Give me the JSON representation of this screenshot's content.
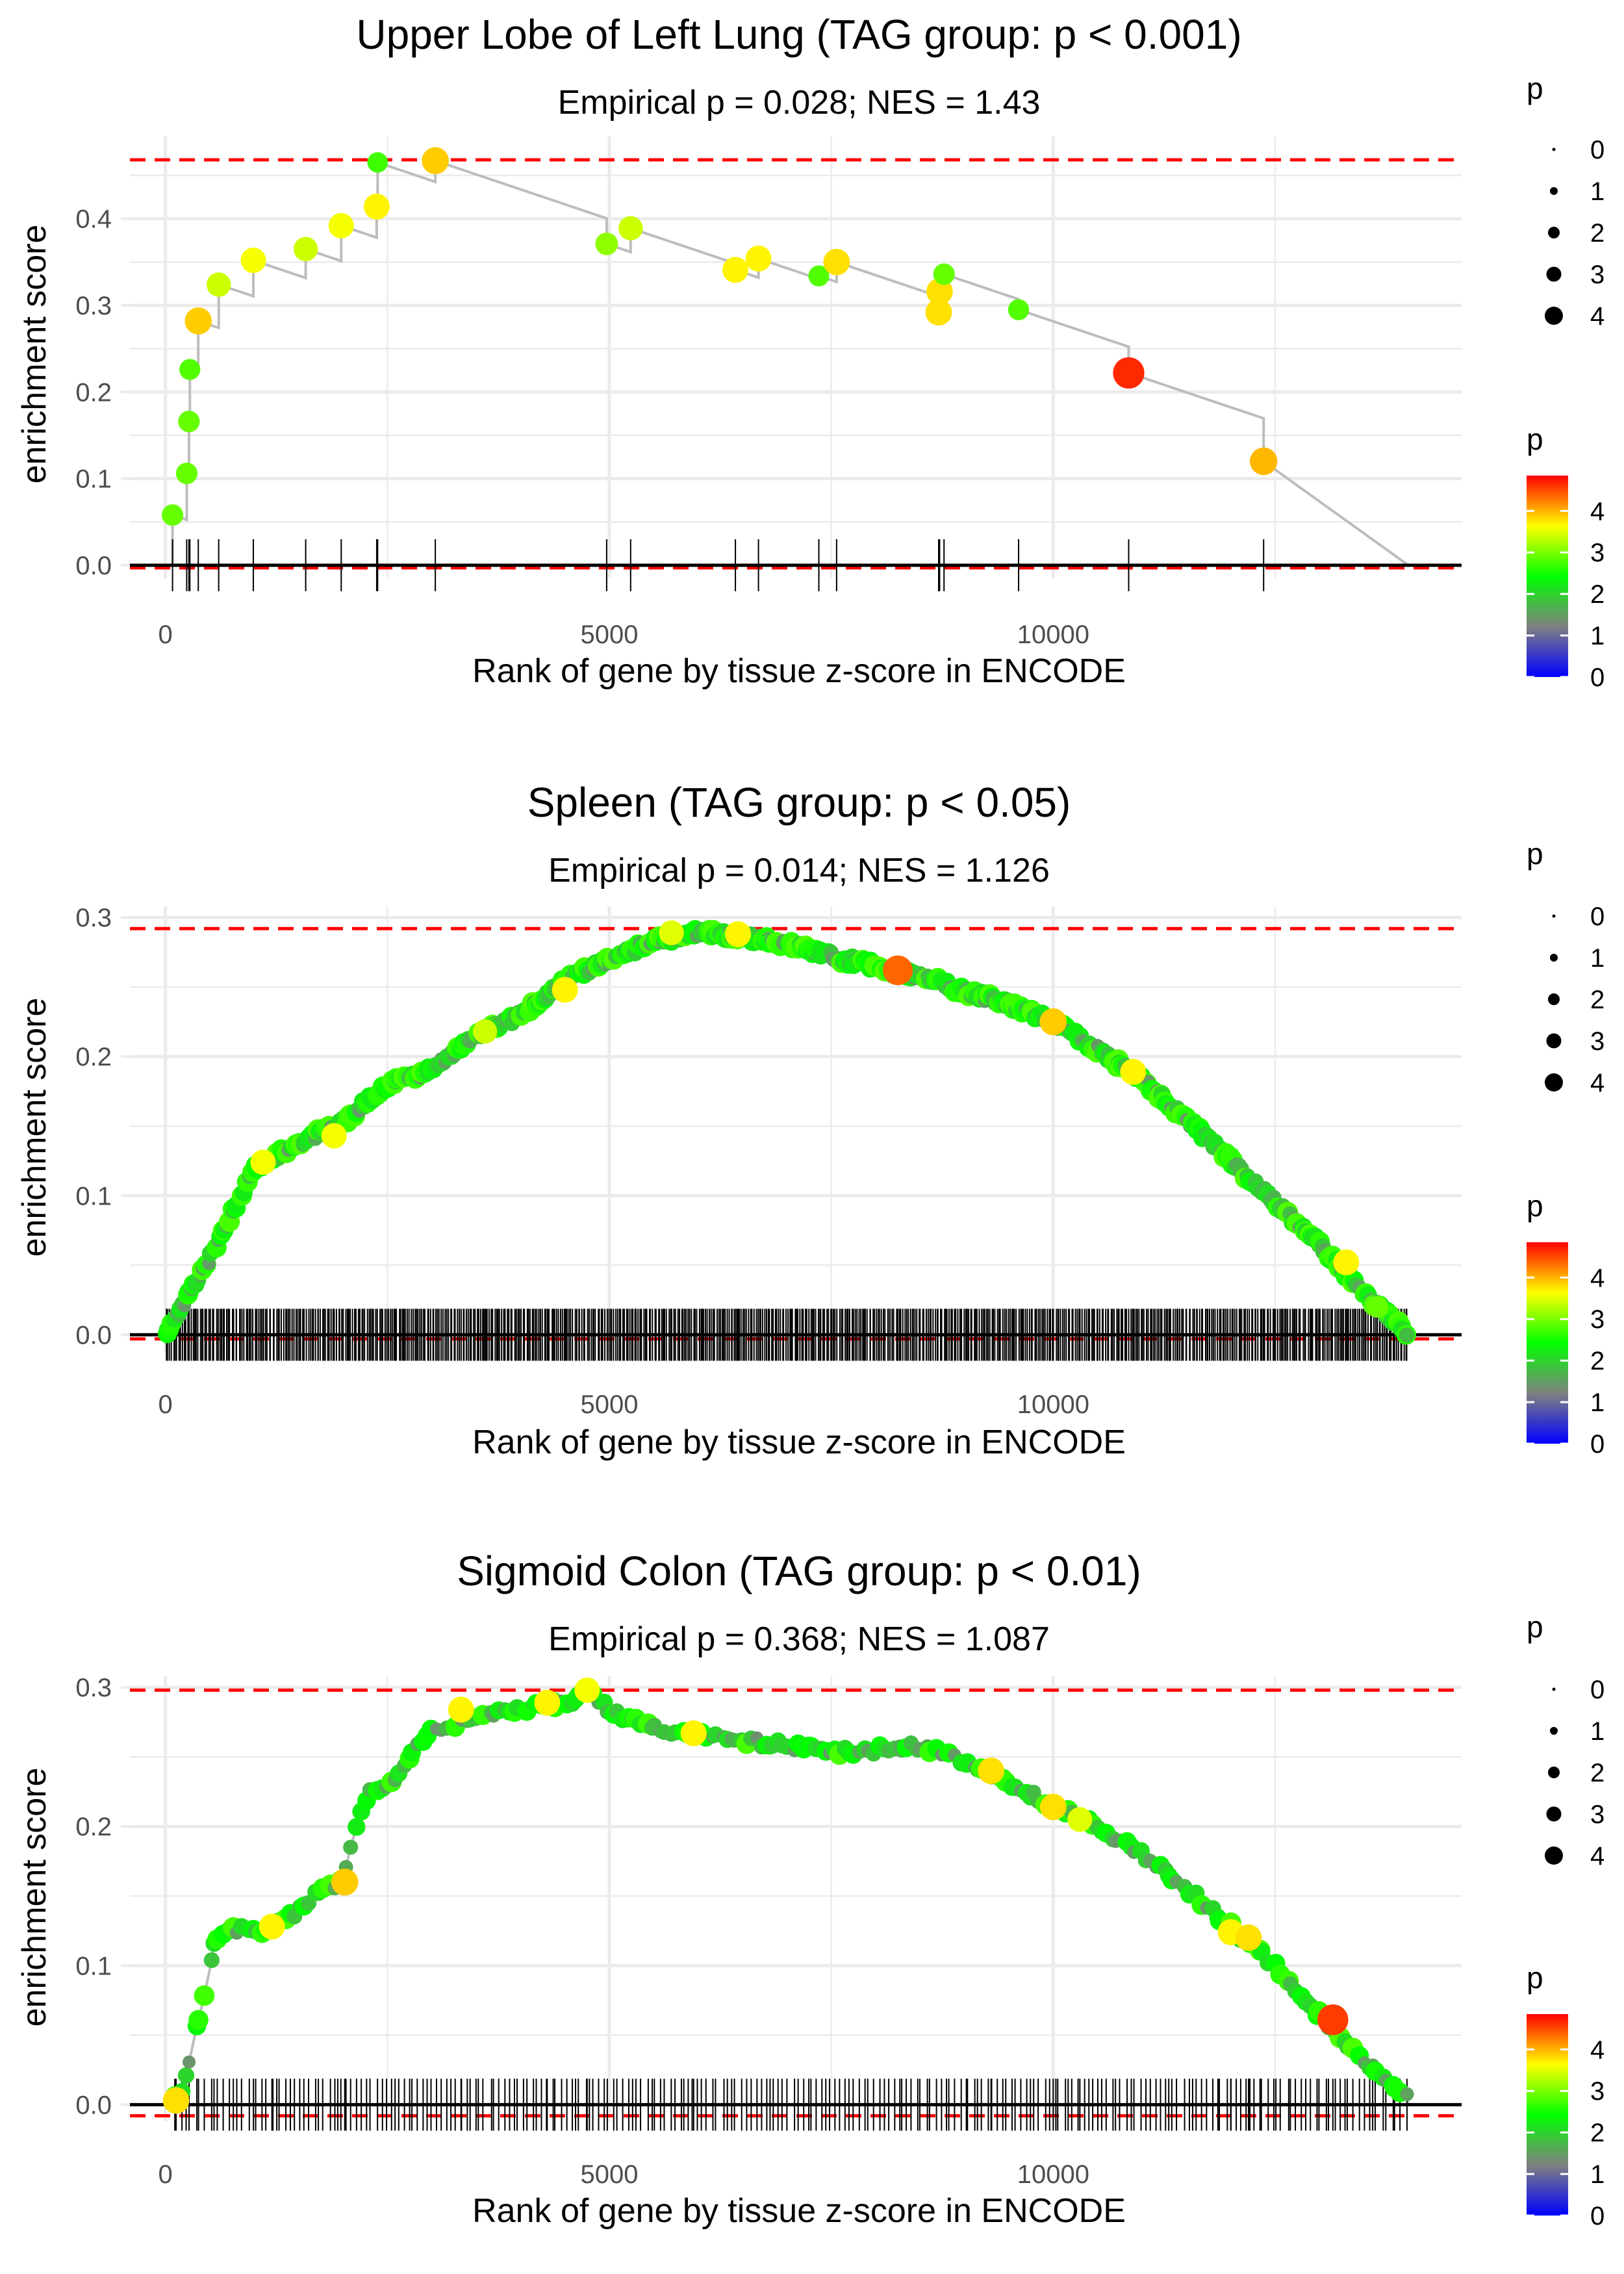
{
  "legend_labels": {
    "size_title": "p",
    "color_title": "p",
    "size_values": [
      "0",
      "1",
      "2",
      "3",
      "4"
    ],
    "color_values": [
      "4",
      "3",
      "2",
      "1",
      "0"
    ]
  },
  "colors": {
    "gradient": [
      "#0000ff",
      "#808080",
      "#00ff00",
      "#ffff00",
      "#ff0000"
    ],
    "running_line": "#bdbdbd",
    "reference_dash": "#ff0000",
    "grid": "#ebebeb",
    "text": "#000000",
    "tick_label": "#4d4d4d"
  },
  "chart_data": [
    {
      "type": "line",
      "title": "Upper Lobe of Left Lung (TAG group: p < 0.001)",
      "subtitle": "Empirical p = 0.028; NES = 1.43",
      "xlabel": "Rank of gene by tissue z-score in ENCODE",
      "ylabel": "enrichment score",
      "xlim": [
        -400,
        14600
      ],
      "ylim": [
        -0.015,
        0.495
      ],
      "xticks": [
        0,
        5000,
        10000
      ],
      "xtick_labels": [
        "0",
        "5000",
        "10000"
      ],
      "yticks": [
        0,
        0.1,
        0.2,
        0.3,
        0.4
      ],
      "ytick_labels": [
        "0.0",
        "0.1",
        "0.2",
        "0.3",
        "0.4"
      ],
      "max_es": 0.468,
      "min_es": -0.003,
      "end_rank": 14000,
      "dense": false,
      "hits": [
        {
          "x": 80,
          "y": 0.058,
          "p": 3.0
        },
        {
          "x": 240,
          "y": 0.106,
          "p": 3.0
        },
        {
          "x": 265,
          "y": 0.166,
          "p": 3.0
        },
        {
          "x": 275,
          "y": 0.226,
          "p": 2.9
        },
        {
          "x": 370,
          "y": 0.282,
          "p": 4.0
        },
        {
          "x": 600,
          "y": 0.324,
          "p": 3.5
        },
        {
          "x": 990,
          "y": 0.352,
          "p": 3.7
        },
        {
          "x": 1580,
          "y": 0.365,
          "p": 3.5
        },
        {
          "x": 1980,
          "y": 0.392,
          "p": 3.7
        },
        {
          "x": 2380,
          "y": 0.414,
          "p": 3.8
        },
        {
          "x": 2390,
          "y": 0.465,
          "p": 2.8
        },
        {
          "x": 3040,
          "y": 0.467,
          "p": 4.0
        },
        {
          "x": 4970,
          "y": 0.371,
          "p": 3.2
        },
        {
          "x": 5240,
          "y": 0.389,
          "p": 3.5
        },
        {
          "x": 6420,
          "y": 0.341,
          "p": 3.8
        },
        {
          "x": 6680,
          "y": 0.354,
          "p": 3.8
        },
        {
          "x": 7360,
          "y": 0.334,
          "p": 2.9
        },
        {
          "x": 7560,
          "y": 0.35,
          "p": 3.9
        },
        {
          "x": 8710,
          "y": 0.292,
          "p": 3.9
        },
        {
          "x": 8720,
          "y": 0.316,
          "p": 3.9
        },
        {
          "x": 8770,
          "y": 0.336,
          "p": 3.0
        },
        {
          "x": 9610,
          "y": 0.295,
          "p": 2.9
        },
        {
          "x": 10850,
          "y": 0.222,
          "p": 4.8
        },
        {
          "x": 12370,
          "y": 0.12,
          "p": 4.1
        }
      ]
    },
    {
      "type": "line",
      "title": "Spleen (TAG group: p < 0.05)",
      "subtitle": "Empirical p = 0.014; NES = 1.126",
      "xlabel": "Rank of gene by tissue z-score in ENCODE",
      "ylabel": "enrichment score",
      "xlim": [
        -400,
        14600
      ],
      "ylim": [
        -0.012,
        0.308
      ],
      "xticks": [
        0,
        5000,
        10000
      ],
      "xtick_labels": [
        "0",
        "5000",
        "10000"
      ],
      "yticks": [
        0,
        0.1,
        0.2,
        0.3
      ],
      "ytick_labels": [
        "0.0",
        "0.1",
        "0.2",
        "0.3"
      ],
      "max_es": 0.292,
      "min_es": -0.003,
      "end_rank": 14000,
      "dense": true,
      "hit_count": 700,
      "seed": 11,
      "curve": [
        [
          0,
          0
        ],
        [
          500,
          0.055
        ],
        [
          1000,
          0.12
        ],
        [
          1500,
          0.138
        ],
        [
          2000,
          0.153
        ],
        [
          2500,
          0.18
        ],
        [
          3000,
          0.19
        ],
        [
          3500,
          0.215
        ],
        [
          4000,
          0.23
        ],
        [
          4500,
          0.255
        ],
        [
          5000,
          0.27
        ],
        [
          5500,
          0.283
        ],
        [
          6000,
          0.289
        ],
        [
          6500,
          0.286
        ],
        [
          7000,
          0.281
        ],
        [
          7500,
          0.272
        ],
        [
          8000,
          0.265
        ],
        [
          8500,
          0.258
        ],
        [
          9000,
          0.247
        ],
        [
          9500,
          0.238
        ],
        [
          10000,
          0.225
        ],
        [
          10500,
          0.205
        ],
        [
          11000,
          0.183
        ],
        [
          11500,
          0.155
        ],
        [
          12000,
          0.125
        ],
        [
          12500,
          0.095
        ],
        [
          13000,
          0.065
        ],
        [
          13500,
          0.03
        ],
        [
          14000,
          0
        ]
      ],
      "highlights": [
        {
          "x": 1100,
          "y": 0.124,
          "p": 3.7
        },
        {
          "x": 1900,
          "y": 0.143,
          "p": 3.7
        },
        {
          "x": 3600,
          "y": 0.218,
          "p": 3.5
        },
        {
          "x": 4500,
          "y": 0.248,
          "p": 3.8
        },
        {
          "x": 5700,
          "y": 0.289,
          "p": 3.6
        },
        {
          "x": 6450,
          "y": 0.288,
          "p": 3.8
        },
        {
          "x": 8250,
          "y": 0.262,
          "p": 4.5
        },
        {
          "x": 10000,
          "y": 0.225,
          "p": 4.0
        },
        {
          "x": 10900,
          "y": 0.189,
          "p": 3.8
        },
        {
          "x": 13300,
          "y": 0.052,
          "p": 3.8
        },
        {
          "x": 13650,
          "y": 0.02,
          "p": 3.0
        }
      ]
    },
    {
      "type": "line",
      "title": "Sigmoid Colon (TAG group: p < 0.01)",
      "subtitle": "Empirical p = 0.368; NES = 1.087",
      "xlabel": "Rank of gene by tissue z-score in ENCODE",
      "ylabel": "enrichment score",
      "xlim": [
        -400,
        14600
      ],
      "ylim": [
        -0.012,
        0.308
      ],
      "xticks": [
        0,
        5000,
        10000
      ],
      "xtick_labels": [
        "0",
        "5000",
        "10000"
      ],
      "yticks": [
        0,
        0.1,
        0.2,
        0.3
      ],
      "ytick_labels": [
        "0.0",
        "0.1",
        "0.2",
        "0.3"
      ],
      "max_es": 0.298,
      "min_es": -0.008,
      "end_rank": 14000,
      "dense": true,
      "hit_count": 260,
      "seed": 23,
      "curve": [
        [
          100,
          0.003
        ],
        [
          200,
          0.01
        ],
        [
          300,
          0.04
        ],
        [
          450,
          0.08
        ],
        [
          550,
          0.115
        ],
        [
          700,
          0.128
        ],
        [
          900,
          0.125
        ],
        [
          1200,
          0.125
        ],
        [
          1500,
          0.14
        ],
        [
          1750,
          0.155
        ],
        [
          2000,
          0.16
        ],
        [
          2150,
          0.2
        ],
        [
          2300,
          0.225
        ],
        [
          2600,
          0.235
        ],
        [
          2800,
          0.255
        ],
        [
          3000,
          0.27
        ],
        [
          3500,
          0.278
        ],
        [
          4000,
          0.285
        ],
        [
          4500,
          0.288
        ],
        [
          4750,
          0.298
        ],
        [
          5000,
          0.283
        ],
        [
          5500,
          0.272
        ],
        [
          6000,
          0.265
        ],
        [
          6500,
          0.262
        ],
        [
          7000,
          0.258
        ],
        [
          7500,
          0.253
        ],
        [
          8000,
          0.255
        ],
        [
          8500,
          0.258
        ],
        [
          9000,
          0.248
        ],
        [
          9500,
          0.23
        ],
        [
          10000,
          0.215
        ],
        [
          10500,
          0.2
        ],
        [
          11000,
          0.18
        ],
        [
          11500,
          0.155
        ],
        [
          12000,
          0.128
        ],
        [
          12500,
          0.1
        ],
        [
          13000,
          0.065
        ],
        [
          13500,
          0.03
        ],
        [
          14000,
          0.005
        ]
      ],
      "highlights": [
        {
          "x": 120,
          "y": 0.003,
          "p": 3.9
        },
        {
          "x": 1200,
          "y": 0.128,
          "p": 3.8
        },
        {
          "x": 2020,
          "y": 0.16,
          "p": 4.0
        },
        {
          "x": 3330,
          "y": 0.284,
          "p": 3.8
        },
        {
          "x": 4300,
          "y": 0.289,
          "p": 3.8
        },
        {
          "x": 4750,
          "y": 0.298,
          "p": 3.7
        },
        {
          "x": 5950,
          "y": 0.267,
          "p": 3.8
        },
        {
          "x": 9300,
          "y": 0.24,
          "p": 3.9
        },
        {
          "x": 10000,
          "y": 0.214,
          "p": 3.9
        },
        {
          "x": 10300,
          "y": 0.205,
          "p": 3.6
        },
        {
          "x": 12000,
          "y": 0.124,
          "p": 3.8
        },
        {
          "x": 12200,
          "y": 0.12,
          "p": 3.9
        },
        {
          "x": 13150,
          "y": 0.061,
          "p": 4.7
        }
      ]
    }
  ]
}
